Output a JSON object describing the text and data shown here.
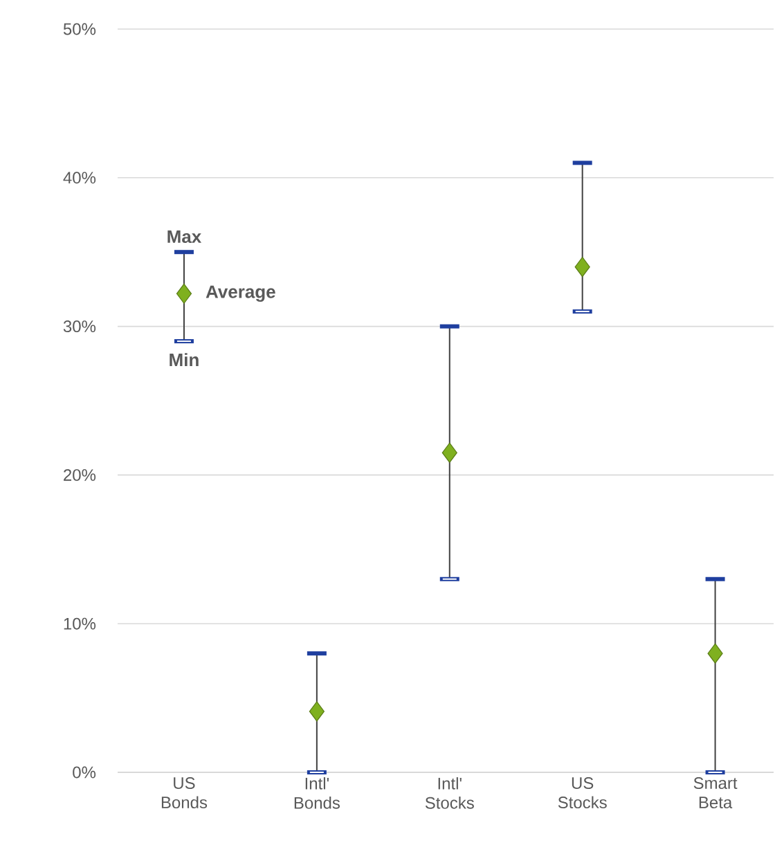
{
  "chart_data": {
    "type": "scatter",
    "categories": [
      "US Bonds",
      "Intl' Bonds",
      "Intl' Stocks",
      "US Stocks",
      "Smart Beta"
    ],
    "series": [
      {
        "color": "#7fb01f",
        "values": [
          32.2,
          4.1,
          21.5,
          34.0,
          8.0
        ],
        "errors": [
          [
            29,
            35
          ],
          [
            0,
            8
          ],
          [
            13,
            30
          ],
          [
            31,
            41
          ],
          [
            0,
            13
          ]
        ]
      }
    ],
    "marker": "diamond",
    "ylim": [
      0,
      50
    ],
    "yticks": [
      {
        "value": 0,
        "label": "0%"
      },
      {
        "value": 10,
        "label": "10%"
      },
      {
        "value": 20,
        "label": "20%"
      },
      {
        "value": 30,
        "label": "30%"
      },
      {
        "value": 40,
        "label": "40%"
      },
      {
        "value": 50,
        "label": "50%"
      }
    ],
    "grid": "y",
    "annotations": [
      {
        "text": "Max",
        "x": "US Bonds",
        "y": 35
      },
      {
        "text": "Average",
        "x": "US Bonds",
        "y": 32.2
      },
      {
        "text": "Min",
        "x": "US Bonds",
        "y": 29
      }
    ]
  }
}
